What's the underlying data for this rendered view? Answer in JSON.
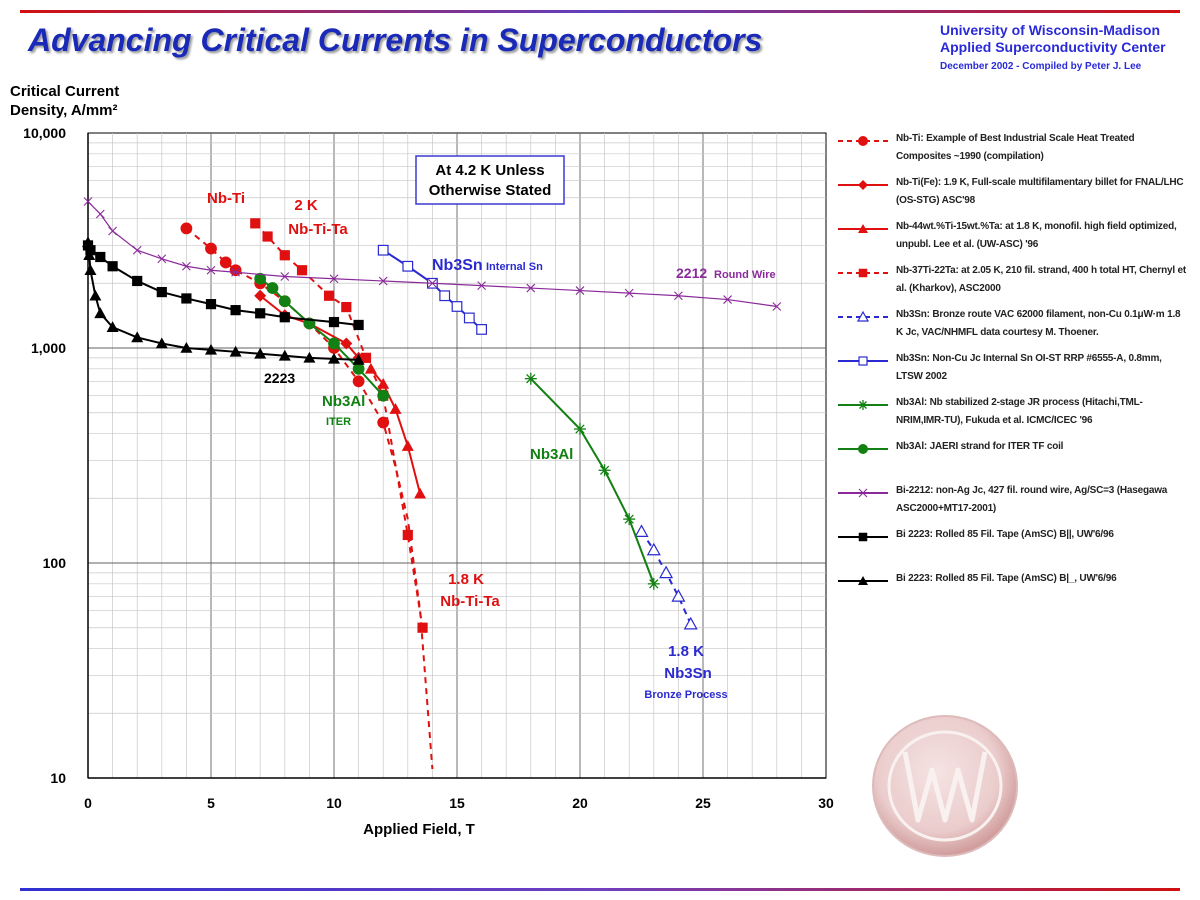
{
  "header": {
    "title": "Advancing Critical Currents in Superconductors",
    "org_line1": "University of Wisconsin-Madison",
    "org_line2": "Applied Superconductivity Center",
    "org_line3": "December 2002 - Compiled by Peter J. Lee"
  },
  "colors": {
    "nbti": "#e01010",
    "nb3sn": "#2a2ad0",
    "nb3al": "#128012",
    "bi2212": "#8a2a9a",
    "bi2223": "#000000",
    "title": "#1a2ab8"
  },
  "chart_data": {
    "type": "line",
    "x_scale": "linear",
    "y_scale": "log",
    "xlim": [
      0,
      30
    ],
    "ylim": [
      10,
      10000
    ],
    "grid": true,
    "legend_position": "right",
    "ylabel_line1": "Critical Current",
    "ylabel_line2": "Density, A/mm²",
    "xlabel": "Applied Field, T",
    "x_ticks": [
      "0",
      "5",
      "10",
      "15",
      "20",
      "25",
      "30"
    ],
    "y_ticks": [
      "10",
      "100",
      "1,000",
      "10,000"
    ],
    "annotation_box": [
      "At 4.2 K Unless",
      "Otherwise Stated"
    ],
    "labels": {
      "nbti": "Nb-Ti",
      "k2": "2 K",
      "nbtita": "Nb-Ti-Ta",
      "k18a": "1.8 K",
      "nbtita2": "Nb-Ti-Ta",
      "nb3sn_int_main": "Nb3Sn",
      "nb3sn_int_sub": "Internal Sn",
      "wire2212_main": "2212",
      "wire2212_sub": "Round Wire",
      "label2223": "2223",
      "nb3al_iter": "Nb3Al",
      "iter": "ITER",
      "nb3al_2": "Nb3Al",
      "k18b": "1.8 K",
      "nb3sn_bronze": "Nb3Sn",
      "bronze": "Bronze Process"
    },
    "series": [
      {
        "key": "nbti_ind",
        "name": "Nb-Ti:  Example of Best Industrial Scale Heat Treated Composites ~1990 (compilation)",
        "color": "#e01010",
        "marker": "circle",
        "dash": true,
        "points": [
          [
            4,
            3600
          ],
          [
            5,
            2900
          ],
          [
            5.6,
            2500
          ],
          [
            6,
            2300
          ],
          [
            7,
            2000
          ],
          [
            8,
            1650
          ],
          [
            9,
            1300
          ],
          [
            10,
            1000
          ],
          [
            11,
            700
          ],
          [
            12,
            450
          ],
          [
            12.5,
            280
          ],
          [
            13,
            160
          ],
          [
            13.5,
            60
          ],
          [
            14,
            11
          ]
        ]
      },
      {
        "key": "nbti_fe",
        "name": "Nb-Ti(Fe): 1.9 K, Full-scale multifilamentary billet for FNAL/LHC (OS-STG) ASC'98",
        "color": "#e01010",
        "marker": "diamond",
        "dash": false,
        "points": [
          [
            7,
            1750
          ],
          [
            8,
            1420
          ],
          [
            9,
            1300
          ],
          [
            10.5,
            1050
          ],
          [
            11,
            900
          ]
        ]
      },
      {
        "key": "nbti_44",
        "name": "Nb-44wt.%Ti-15wt.%Ta: at 1.8 K, monofil. high field optimized, unpubl. Lee et al. (UW-ASC) '96",
        "color": "#e01010",
        "marker": "triangle",
        "dash": false,
        "points": [
          [
            11.5,
            800
          ],
          [
            12,
            680
          ],
          [
            12.5,
            520
          ],
          [
            13,
            350
          ],
          [
            13.5,
            210
          ]
        ]
      },
      {
        "key": "nbti_37",
        "name": "Nb-37Ti-22Ta: at 2.05 K, 210 fil. strand, 400 h total HT, Chernyl et al. (Kharkov), ASC2000",
        "color": "#e01010",
        "marker": "square",
        "dash": true,
        "points": [
          [
            6.8,
            3800
          ],
          [
            7.3,
            3300
          ],
          [
            8,
            2700
          ],
          [
            8.7,
            2300
          ],
          [
            9.8,
            1750
          ],
          [
            10.5,
            1550
          ],
          [
            11.3,
            900
          ],
          [
            12,
            600
          ],
          [
            13,
            135
          ],
          [
            13.6,
            50
          ]
        ]
      },
      {
        "key": "nb3sn_bronze",
        "name": "Nb3Sn: Bronze route VAC  62000 filament, non-Cu 0.1μW·m 1.8 K Jc, VAC/NHMFL data courtesy M. Thoener.",
        "color": "#2a2ad0",
        "marker": "open-triangle",
        "dash": true,
        "points": [
          [
            22.5,
            140
          ],
          [
            23,
            115
          ],
          [
            23.5,
            90
          ],
          [
            24,
            70
          ],
          [
            24.5,
            52
          ]
        ]
      },
      {
        "key": "nb3sn_int",
        "name": "Nb3Sn: Non-Cu Jc Internal Sn OI-ST RRP #6555-A, 0.8mm, LTSW 2002",
        "color": "#2a2ad0",
        "marker": "open-square",
        "dash": false,
        "points": [
          [
            12,
            2850
          ],
          [
            13,
            2400
          ],
          [
            14,
            2000
          ],
          [
            14.5,
            1750
          ],
          [
            15,
            1560
          ],
          [
            15.5,
            1380
          ],
          [
            16,
            1220
          ]
        ]
      },
      {
        "key": "nb3al_jr",
        "name": "Nb3Al: Nb stabilized 2-stage JR process (Hitachi,TML-NRIM,IMR-TU), Fukuda et al. ICMC/ICEC '96",
        "color": "#128012",
        "marker": "asterisk",
        "dash": false,
        "points": [
          [
            18,
            720
          ],
          [
            20,
            420
          ],
          [
            21,
            270
          ],
          [
            22,
            160
          ],
          [
            23,
            80
          ]
        ]
      },
      {
        "key": "nb3al_iter",
        "name": "Nb3Al: JAERI strand for ITER TF coil",
        "color": "#128012",
        "marker": "circle",
        "dash": false,
        "points": [
          [
            7,
            2100
          ],
          [
            7.5,
            1900
          ],
          [
            8,
            1650
          ],
          [
            9,
            1300
          ],
          [
            10,
            1050
          ],
          [
            11,
            800
          ],
          [
            12,
            600
          ]
        ]
      },
      {
        "key": "bi2212",
        "name": "Bi-2212: non-Ag Jc, 427 fil. round wire, Ag/SC=3 (Hasegawa ASC2000+MT17-2001)",
        "color": "#8a2a9a",
        "marker": "x",
        "dash": false,
        "points": [
          [
            0,
            4800
          ],
          [
            0.5,
            4200
          ],
          [
            1,
            3500
          ],
          [
            2,
            2850
          ],
          [
            3,
            2600
          ],
          [
            4,
            2400
          ],
          [
            5,
            2300
          ],
          [
            6,
            2250
          ],
          [
            8,
            2150
          ],
          [
            10,
            2100
          ],
          [
            12,
            2050
          ],
          [
            14,
            2000
          ],
          [
            16,
            1950
          ],
          [
            18,
            1900
          ],
          [
            20,
            1850
          ],
          [
            22,
            1800
          ],
          [
            24,
            1750
          ],
          [
            26,
            1680
          ],
          [
            28,
            1560
          ]
        ]
      },
      {
        "key": "bi2223_par",
        "name": "Bi 2223: Rolled 85 Fil. Tape (AmSC) B||, UW'6/96",
        "color": "#000000",
        "marker": "square",
        "dash": false,
        "points": [
          [
            0,
            3000
          ],
          [
            0.1,
            2850
          ],
          [
            0.5,
            2650
          ],
          [
            1,
            2400
          ],
          [
            2,
            2050
          ],
          [
            3,
            1820
          ],
          [
            4,
            1700
          ],
          [
            5,
            1600
          ],
          [
            6,
            1500
          ],
          [
            7,
            1450
          ],
          [
            8,
            1390
          ],
          [
            10,
            1320
          ],
          [
            11,
            1280
          ]
        ]
      },
      {
        "key": "bi2223_perp",
        "name": "Bi 2223: Rolled 85 Fil. Tape (AmSC) B|_, UW'6/96",
        "color": "#000000",
        "marker": "triangle",
        "dash": false,
        "points": [
          [
            0,
            3100
          ],
          [
            0.05,
            2700
          ],
          [
            0.1,
            2300
          ],
          [
            0.3,
            1750
          ],
          [
            0.5,
            1450
          ],
          [
            1,
            1250
          ],
          [
            2,
            1120
          ],
          [
            3,
            1050
          ],
          [
            4,
            1000
          ],
          [
            5,
            980
          ],
          [
            6,
            960
          ],
          [
            7,
            940
          ],
          [
            8,
            920
          ],
          [
            9,
            900
          ],
          [
            10,
            890
          ],
          [
            11,
            880
          ]
        ]
      }
    ]
  }
}
